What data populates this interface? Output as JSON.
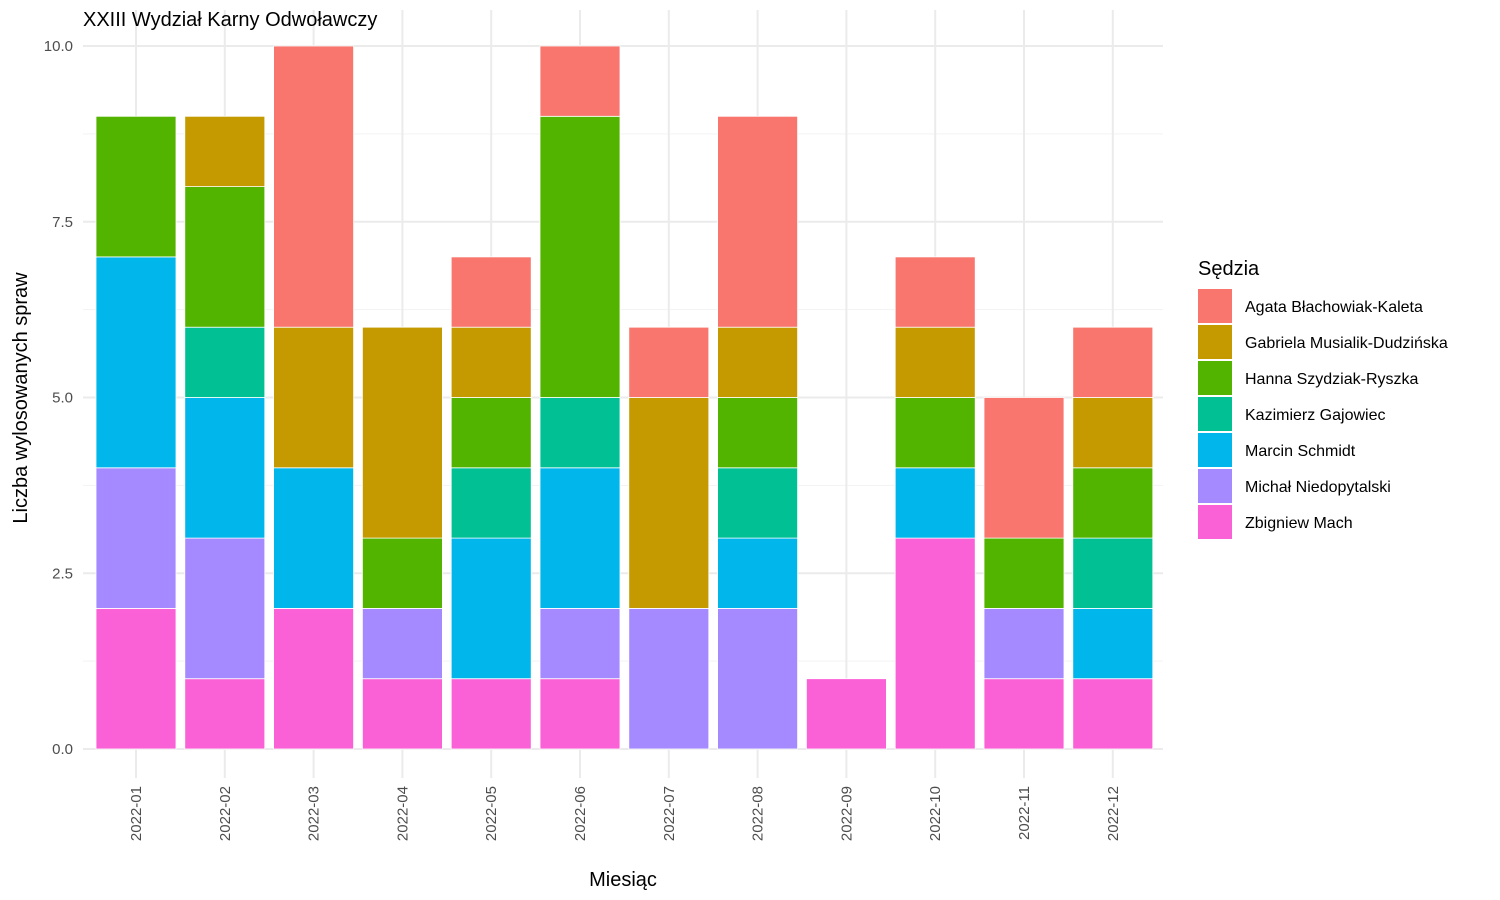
{
  "chart_data": {
    "type": "bar",
    "stacked": true,
    "title": "XXIII Wydział Karny Odwoławczy",
    "xlabel": "Miesiąc",
    "ylabel": "Liczba wylosowanych spraw",
    "ylim": [
      0,
      10
    ],
    "y_ticks": [
      "0.0",
      "2.5",
      "5.0",
      "7.5",
      "10.0"
    ],
    "y_tick_values": [
      0,
      2.5,
      5,
      7.5,
      10
    ],
    "grid": true,
    "legend_title": "Sędzia",
    "legend_position": "right",
    "categories": [
      "2022-01",
      "2022-02",
      "2022-03",
      "2022-04",
      "2022-05",
      "2022-06",
      "2022-07",
      "2022-08",
      "2022-09",
      "2022-10",
      "2022-11",
      "2022-12"
    ],
    "series": [
      {
        "name": "Agata Błachowiak-Kaleta",
        "color": "#F8766D",
        "values": [
          0,
          0,
          4,
          0,
          1,
          1,
          1,
          3,
          0,
          1,
          2,
          1
        ]
      },
      {
        "name": "Gabriela Musialik-Dudzińska",
        "color": "#C49A00",
        "values": [
          0,
          1,
          2,
          3,
          1,
          0,
          3,
          1,
          0,
          1,
          0,
          1
        ]
      },
      {
        "name": "Hanna Szydziak-Ryszka",
        "color": "#53B400",
        "values": [
          2,
          2,
          0,
          1,
          1,
          4,
          0,
          1,
          0,
          1,
          1,
          1
        ]
      },
      {
        "name": "Kazimierz Gajowiec",
        "color": "#00C094",
        "values": [
          0,
          1,
          0,
          0,
          1,
          1,
          0,
          1,
          0,
          0,
          0,
          1
        ]
      },
      {
        "name": "Marcin Schmidt",
        "color": "#00B6EB",
        "values": [
          3,
          2,
          2,
          0,
          2,
          2,
          0,
          1,
          0,
          1,
          0,
          1
        ]
      },
      {
        "name": "Michał Niedopytalski",
        "color": "#A58AFF",
        "values": [
          2,
          2,
          0,
          1,
          0,
          1,
          2,
          2,
          0,
          0,
          1,
          0
        ]
      },
      {
        "name": "Zbigniew Mach",
        "color": "#FB61D7",
        "values": [
          2,
          1,
          2,
          1,
          1,
          1,
          0,
          0,
          1,
          3,
          1,
          1
        ]
      }
    ]
  }
}
